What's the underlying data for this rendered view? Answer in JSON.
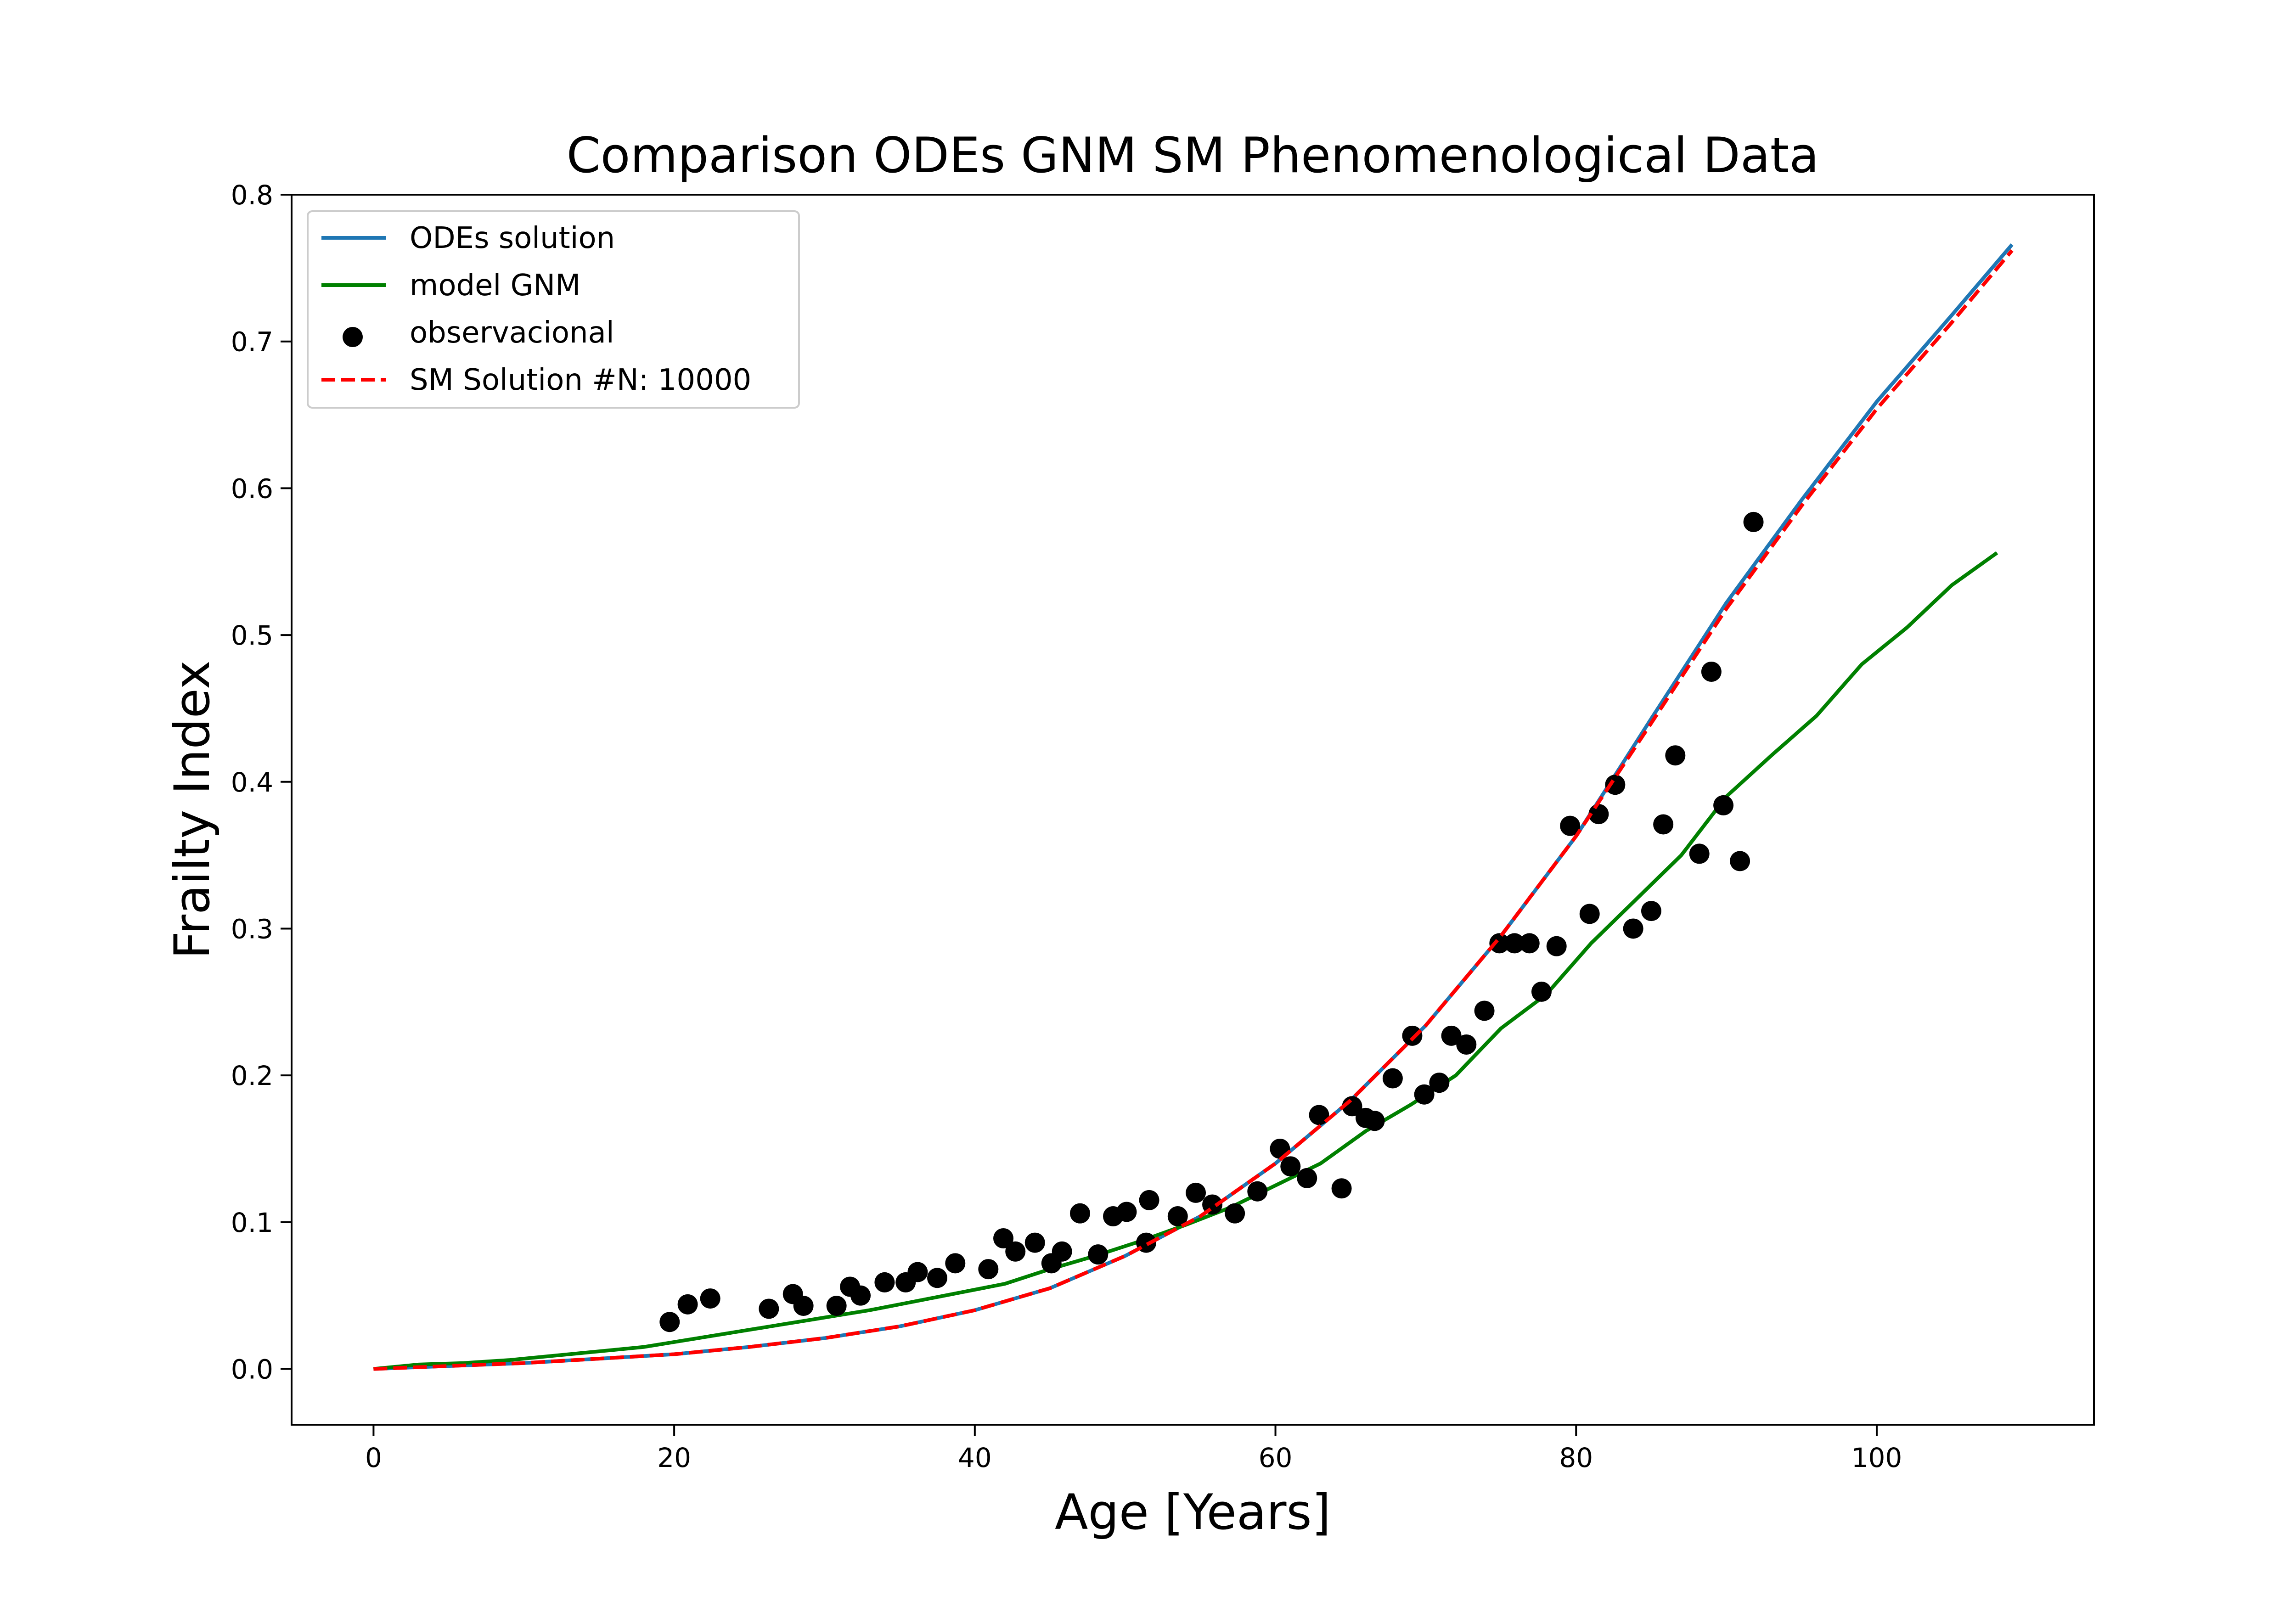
{
  "chart_data": {
    "type": "line",
    "title": "Comparison ODEs GNM SM Phenomenological Data",
    "xlabel": "Age [Years]",
    "ylabel": "Frailty Index",
    "xlim": [
      -5.45,
      114.45
    ],
    "ylim": [
      -0.038,
      0.8
    ],
    "xticks": [
      0,
      20,
      40,
      60,
      80,
      100
    ],
    "yticks": [
      0.0,
      0.1,
      0.2,
      0.3,
      0.4,
      0.5,
      0.6,
      0.7,
      0.8
    ],
    "xtick_labels": [
      "0",
      "20",
      "40",
      "60",
      "80",
      "100"
    ],
    "ytick_labels": [
      "0.0",
      "0.1",
      "0.2",
      "0.3",
      "0.4",
      "0.5",
      "0.6",
      "0.7",
      "0.8"
    ],
    "grid": false,
    "legend_position": "top-left",
    "series": [
      {
        "name": "ODEs solution",
        "kind": "line",
        "color": "#1f77b4",
        "style": "solid",
        "x": [
          0,
          5,
          10,
          15,
          20,
          25,
          30,
          35,
          40,
          45,
          50,
          55,
          60,
          65,
          70,
          75,
          80,
          85,
          90,
          95,
          100,
          105,
          109
        ],
        "y": [
          0.0,
          0.002,
          0.004,
          0.007,
          0.01,
          0.015,
          0.021,
          0.029,
          0.04,
          0.055,
          0.077,
          0.104,
          0.14,
          0.183,
          0.234,
          0.295,
          0.363,
          0.443,
          0.522,
          0.592,
          0.659,
          0.718,
          0.766
        ]
      },
      {
        "name": "model GNM",
        "kind": "line",
        "color": "#008000",
        "style": "solid",
        "x": [
          0,
          3,
          6,
          9,
          12,
          15,
          18,
          21,
          24,
          27,
          30,
          33,
          36,
          39,
          42,
          45,
          48,
          51,
          54,
          57,
          60,
          63,
          66,
          69,
          72,
          75,
          78,
          81,
          84,
          87,
          90,
          93,
          96,
          99,
          102,
          105,
          108
        ],
        "y": [
          0.0,
          0.003,
          0.004,
          0.006,
          0.009,
          0.012,
          0.015,
          0.02,
          0.025,
          0.03,
          0.035,
          0.04,
          0.046,
          0.052,
          0.058,
          0.068,
          0.077,
          0.087,
          0.098,
          0.11,
          0.125,
          0.14,
          0.162,
          0.18,
          0.2,
          0.232,
          0.255,
          0.29,
          0.32,
          0.35,
          0.39,
          0.418,
          0.445,
          0.48,
          0.505,
          0.534,
          0.556
        ]
      },
      {
        "name": "observacional",
        "kind": "scatter",
        "color": "#000000",
        "x": [
          19.7,
          20.9,
          22.4,
          26.3,
          27.9,
          28.6,
          30.8,
          31.7,
          32.4,
          34.0,
          35.4,
          36.2,
          37.5,
          38.7,
          40.9,
          41.9,
          42.7,
          44.0,
          45.1,
          45.8,
          47.0,
          48.2,
          49.2,
          50.1,
          51.4,
          51.6,
          53.5,
          54.7,
          55.8,
          57.3,
          58.8,
          60.3,
          61.0,
          62.1,
          62.9,
          64.4,
          65.1,
          66.0,
          66.6,
          67.8,
          69.1,
          69.9,
          70.9,
          71.7,
          72.7,
          73.9,
          74.9,
          75.9,
          76.9,
          77.7,
          78.7,
          79.6,
          80.9,
          81.5,
          82.6,
          83.8,
          85.0,
          85.8,
          86.6,
          88.2,
          89.0,
          89.8,
          90.9,
          91.8
        ],
        "y": [
          0.032,
          0.044,
          0.048,
          0.041,
          0.051,
          0.043,
          0.043,
          0.056,
          0.05,
          0.059,
          0.059,
          0.066,
          0.062,
          0.072,
          0.068,
          0.089,
          0.08,
          0.086,
          0.072,
          0.08,
          0.106,
          0.078,
          0.104,
          0.107,
          0.086,
          0.115,
          0.104,
          0.12,
          0.112,
          0.106,
          0.121,
          0.15,
          0.138,
          0.13,
          0.173,
          0.123,
          0.179,
          0.171,
          0.169,
          0.198,
          0.227,
          0.187,
          0.195,
          0.227,
          0.221,
          0.244,
          0.29,
          0.29,
          0.29,
          0.257,
          0.288,
          0.37,
          0.31,
          0.378,
          0.398,
          0.3,
          0.312,
          0.371,
          0.418,
          0.351,
          0.475,
          0.384,
          0.346,
          0.577
        ]
      },
      {
        "name": "SM Solution #N: 10000",
        "kind": "line",
        "color": "#ff0000",
        "style": "dashed",
        "x": [
          0,
          5,
          10,
          15,
          20,
          25,
          30,
          35,
          40,
          45,
          50,
          55,
          60,
          65,
          70,
          75,
          80,
          85,
          90,
          95,
          100,
          105,
          109
        ],
        "y": [
          0.0,
          0.002,
          0.004,
          0.007,
          0.01,
          0.015,
          0.021,
          0.029,
          0.04,
          0.055,
          0.077,
          0.104,
          0.14,
          0.183,
          0.234,
          0.295,
          0.363,
          0.44,
          0.518,
          0.588,
          0.654,
          0.713,
          0.762
        ]
      }
    ]
  }
}
